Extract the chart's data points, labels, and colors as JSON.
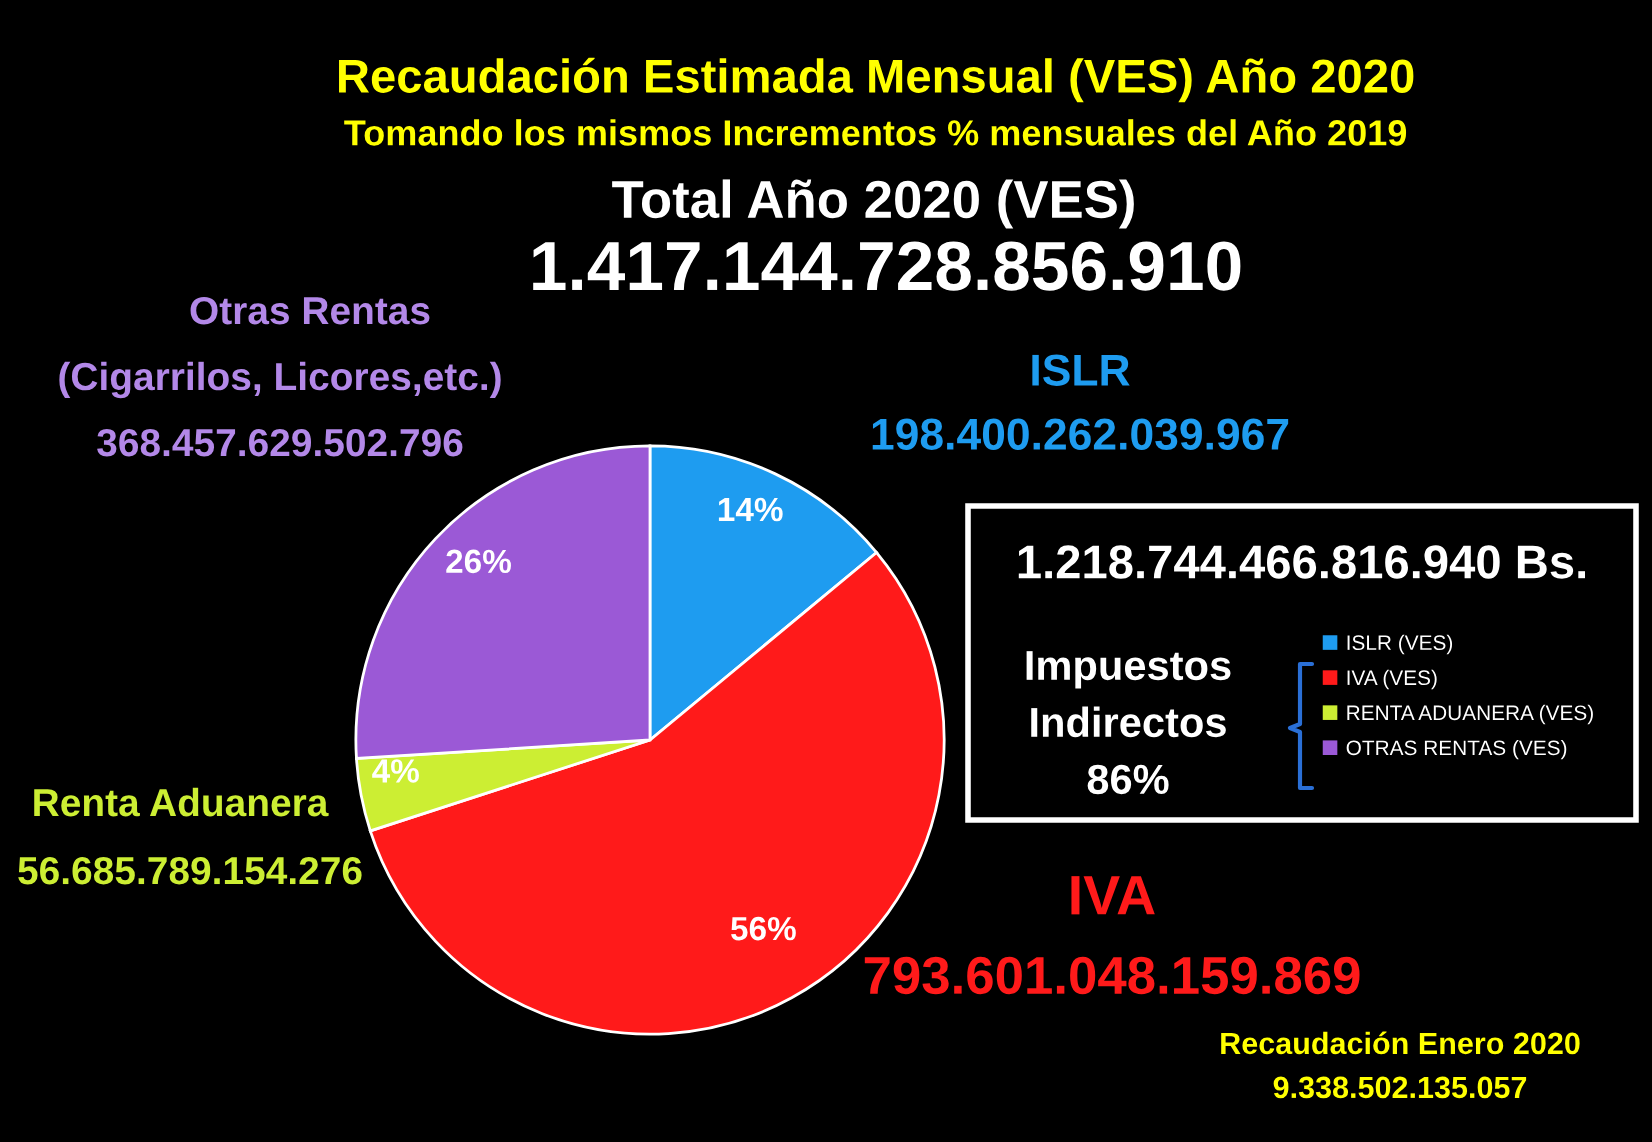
{
  "chart_data": {
    "type": "pie",
    "title": "Recaudación Estimada Mensual (VES) Año 2020",
    "subtitle": "Tomando los mismos Incrementos % mensuales del Año 2019",
    "categories": [
      "ISLR (VES)",
      "IVA (VES)",
      "RENTA ADUANERA (VES)",
      "OTRAS RENTAS (VES)"
    ],
    "values": [
      14,
      56,
      4,
      26
    ],
    "colors": [
      "#1e9cf0",
      "#ff1a1a",
      "#ccee33",
      "#9b59d6"
    ],
    "value_labels": [
      "14%",
      "56%",
      "4%",
      "26%"
    ],
    "legend": "right",
    "annotations": [
      "Total Año 2020 (VES)",
      "1.417.144.728.856.910",
      "Otras Rentas",
      "(Cigarrilos, Licores,etc.)",
      "368.457.629.502.796",
      "ISLR",
      "198.400.262.039.967",
      "Renta Aduanera",
      "56.685.789.154.276",
      "IVA",
      "793.601.048.159.869",
      "1.218.744.466.816.940 Bs.",
      "Impuestos\nIndirectos\n86%",
      "Recaudación Enero 2020",
      "9.338.502.135.057"
    ]
  }
}
